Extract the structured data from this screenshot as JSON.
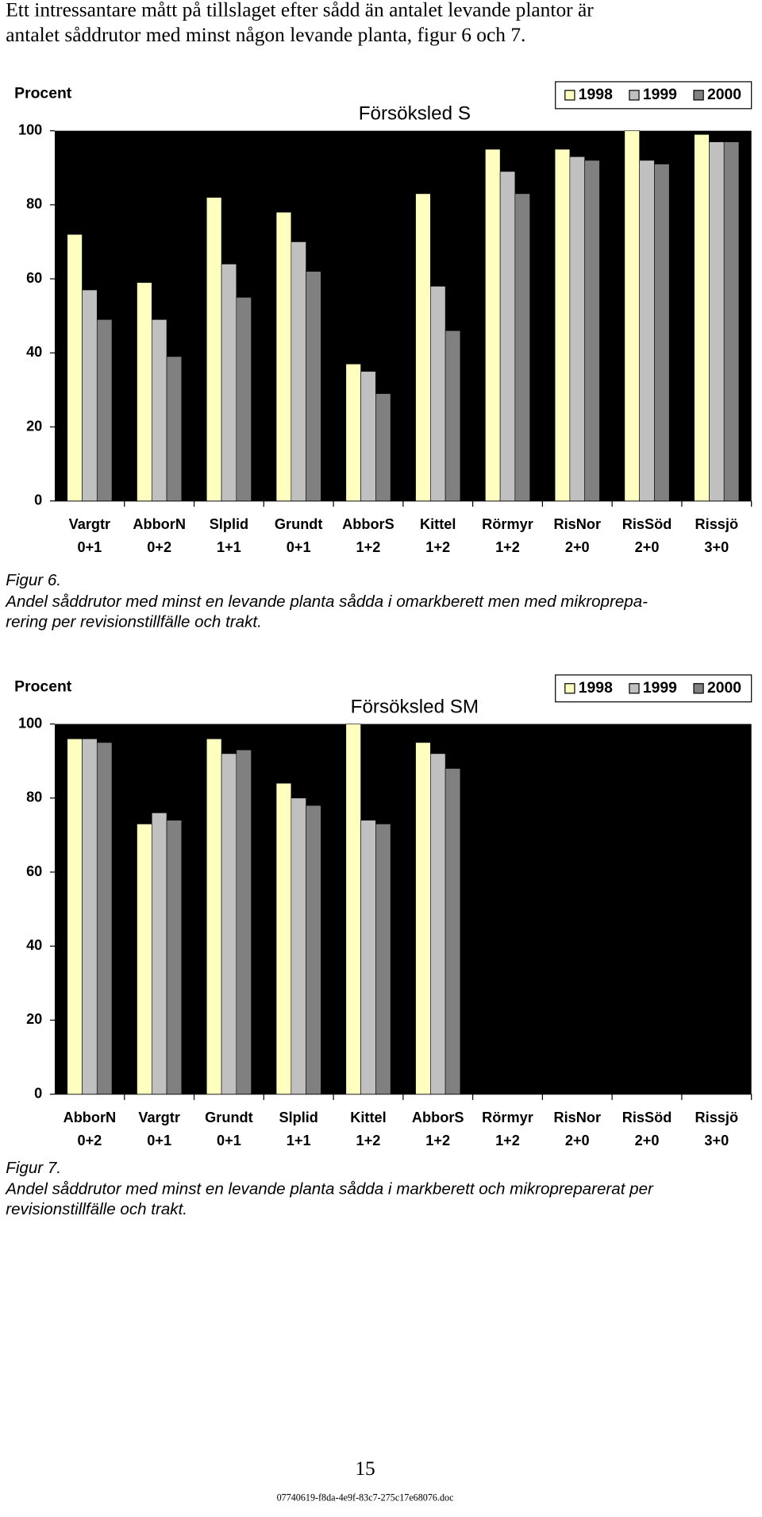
{
  "intro": [
    "Ett intressantare mått på tillslaget efter sådd än antalet levande plantor är",
    "antalet såddrutor med minst någon levande planta, figur 6 och 7."
  ],
  "chart_data": [
    {
      "type": "bar",
      "title": "Försöksled S",
      "ylabel": "Procent",
      "categories": [
        "Vargtr\n0+1",
        "AbborN\n0+2",
        "Slplid\n1+1",
        "Grundt\n0+1",
        "AbborS\n1+2",
        "Kittel\n1+2",
        "Rörmyr\n1+2",
        "RisNor\n2+0",
        "RisSöd\n2+0",
        "Rissjö\n3+0"
      ],
      "series": [
        {
          "name": "1998",
          "color": "#ffffc0",
          "values": [
            72,
            59,
            82,
            78,
            37,
            83,
            95,
            95,
            100,
            99
          ]
        },
        {
          "name": "1999",
          "color": "#c0c0c0",
          "values": [
            57,
            49,
            64,
            70,
            35,
            58,
            89,
            93,
            92,
            97
          ]
        },
        {
          "name": "2000",
          "color": "#808080",
          "values": [
            49,
            39,
            55,
            62,
            29,
            46,
            83,
            92,
            91,
            97
          ]
        }
      ],
      "ylim": [
        0,
        100
      ],
      "yticks": [
        0,
        20,
        40,
        60,
        80,
        100
      ],
      "legend": "top-right",
      "background": "#000000"
    },
    {
      "type": "bar",
      "title": "Försöksled SM",
      "ylabel": "Procent",
      "categories": [
        "AbborN\n0+2",
        "Vargtr\n0+1",
        "Grundt\n0+1",
        "Slplid\n1+1",
        "Kittel\n1+2",
        "AbborS\n1+2",
        "Rörmyr\n1+2",
        "RisNor\n2+0",
        "RisSöd\n2+0",
        "Rissjö\n3+0"
      ],
      "series": [
        {
          "name": "1998",
          "color": "#ffffc0",
          "values": [
            96,
            73,
            96,
            84,
            100,
            95,
            null,
            null,
            null,
            null
          ]
        },
        {
          "name": "1999",
          "color": "#c0c0c0",
          "values": [
            96,
            76,
            92,
            80,
            74,
            92,
            null,
            null,
            null,
            null
          ]
        },
        {
          "name": "2000",
          "color": "#808080",
          "values": [
            95,
            74,
            93,
            78,
            73,
            88,
            null,
            null,
            null,
            null
          ]
        }
      ],
      "ylim": [
        0,
        100
      ],
      "yticks": [
        0,
        20,
        40,
        60,
        80,
        100
      ],
      "legend": "top-right",
      "background": "#000000"
    }
  ],
  "figures": [
    {
      "label": "Figur 6.",
      "caption": [
        "Andel såddrutor med minst en levande planta sådda i omarkberett men med mikroprepa-",
        "rering per revisionstillfälle och trakt."
      ]
    },
    {
      "label": "Figur 7.",
      "caption": [
        "Andel såddrutor med minst en levande planta sådda i markberett och mikropreparerat per",
        "revisionstillfälle och trakt."
      ]
    }
  ],
  "page_number": "15",
  "footer": "07740619-f8da-4e9f-83c7-275c17e68076.doc"
}
